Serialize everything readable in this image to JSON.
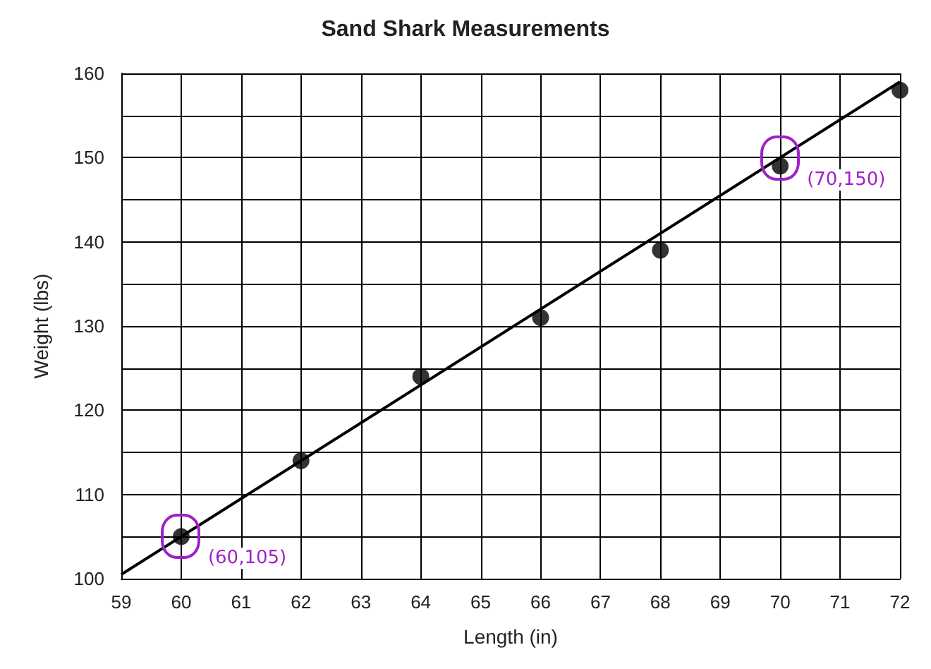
{
  "chart_data": {
    "type": "scatter",
    "title": "Sand Shark Measurements",
    "xlabel": "Length (in)",
    "ylabel": "Weight (lbs)",
    "x": [
      60,
      62,
      64,
      66,
      68,
      70,
      72
    ],
    "series": [
      {
        "color": "#000000",
        "marker": "circle",
        "values": [
          105,
          114,
          124,
          131,
          139,
          149,
          158
        ]
      },
      {
        "type": "line",
        "color": "#000000",
        "marker": "none",
        "x": [
          59,
          72
        ],
        "values": [
          100.5,
          159
        ]
      }
    ],
    "xlim": [
      59,
      72
    ],
    "xticks": [
      59,
      60,
      61,
      62,
      63,
      64,
      65,
      66,
      67,
      68,
      69,
      70,
      71,
      72
    ],
    "ylim": [
      100,
      160
    ],
    "yticks": [
      100,
      {
        "value": 105,
        "label": null
      },
      110,
      {
        "value": 115,
        "label": null
      },
      120,
      {
        "value": 125,
        "label": null
      },
      130,
      {
        "value": 135,
        "label": null
      },
      140,
      {
        "value": 145,
        "label": null
      },
      150,
      {
        "value": 155,
        "label": null
      },
      160
    ],
    "grid": true,
    "annotations": [
      {
        "text": "(60,105)",
        "x": 60,
        "y": 105
      },
      {
        "text": "(70,150)",
        "x": 70,
        "y": 150
      }
    ]
  }
}
